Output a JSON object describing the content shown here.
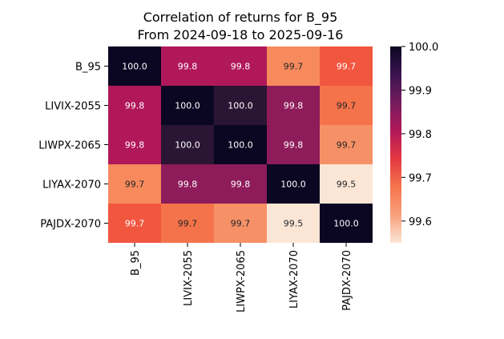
{
  "chart_data": {
    "type": "heatmap",
    "title": "Correlation of returns for B_95",
    "subtitle": "From 2024-09-18 to 2025-09-16",
    "rows": [
      "B_95",
      "LIVIX-2055",
      "LIWPX-2065",
      "LIYAX-2070",
      "PAJDX-2070"
    ],
    "columns": [
      "B_95",
      "LIVIX-2055",
      "LIWPX-2065",
      "LIYAX-2070",
      "PAJDX-2070"
    ],
    "values": [
      [
        100.0,
        99.8,
        99.8,
        99.7,
        99.7
      ],
      [
        99.8,
        100.0,
        100.0,
        99.8,
        99.7
      ],
      [
        99.8,
        100.0,
        100.0,
        99.8,
        99.7
      ],
      [
        99.7,
        99.8,
        99.8,
        100.0,
        99.5
      ],
      [
        99.7,
        99.7,
        99.7,
        99.5,
        100.0
      ]
    ],
    "cell_colors": [
      [
        "#0b0722",
        "#b1185a",
        "#b1185a",
        "#f68a5d",
        "#f1563f"
      ],
      [
        "#b1185a",
        "#0b0722",
        "#2b1534",
        "#8e1c5b",
        "#f5734a"
      ],
      [
        "#b1185a",
        "#2b1534",
        "#0b0722",
        "#8e1c5b",
        "#f69066"
      ],
      [
        "#f68a5d",
        "#8e1c5b",
        "#8e1c5b",
        "#0b0722",
        "#fbe6d6"
      ],
      [
        "#f1563f",
        "#f5734a",
        "#f69066",
        "#fbe6d6",
        "#0b0722"
      ]
    ],
    "value_format": "0.0",
    "colorbar": {
      "ticks": [
        "100.0",
        "99.9",
        "99.8",
        "99.7",
        "99.6"
      ],
      "tick_values": [
        100.0,
        99.9,
        99.8,
        99.7,
        99.6
      ],
      "range": [
        99.55,
        100.0
      ],
      "colormap": "rocket",
      "stops": [
        "#0b0722",
        "#3b1450",
        "#741c5d",
        "#b1185a",
        "#e43842",
        "#f6744d",
        "#f8a07b",
        "#fbe6d6"
      ]
    },
    "grid": false
  }
}
